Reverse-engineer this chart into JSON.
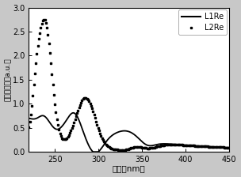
{
  "xlabel": "波长（nm）",
  "ylabel": "相对吸光度（a.u.）",
  "xlim": [
    220,
    450
  ],
  "ylim": [
    0.0,
    3.0
  ],
  "xticks": [
    250,
    300,
    350,
    400,
    450
  ],
  "yticks": [
    0.0,
    0.5,
    1.0,
    1.5,
    2.0,
    2.5,
    3.0
  ],
  "legend_labels": [
    "L1Re",
    "L2Re"
  ],
  "fig_facecolor": "#c8c8c8",
  "ax_facecolor": "#ffffff"
}
